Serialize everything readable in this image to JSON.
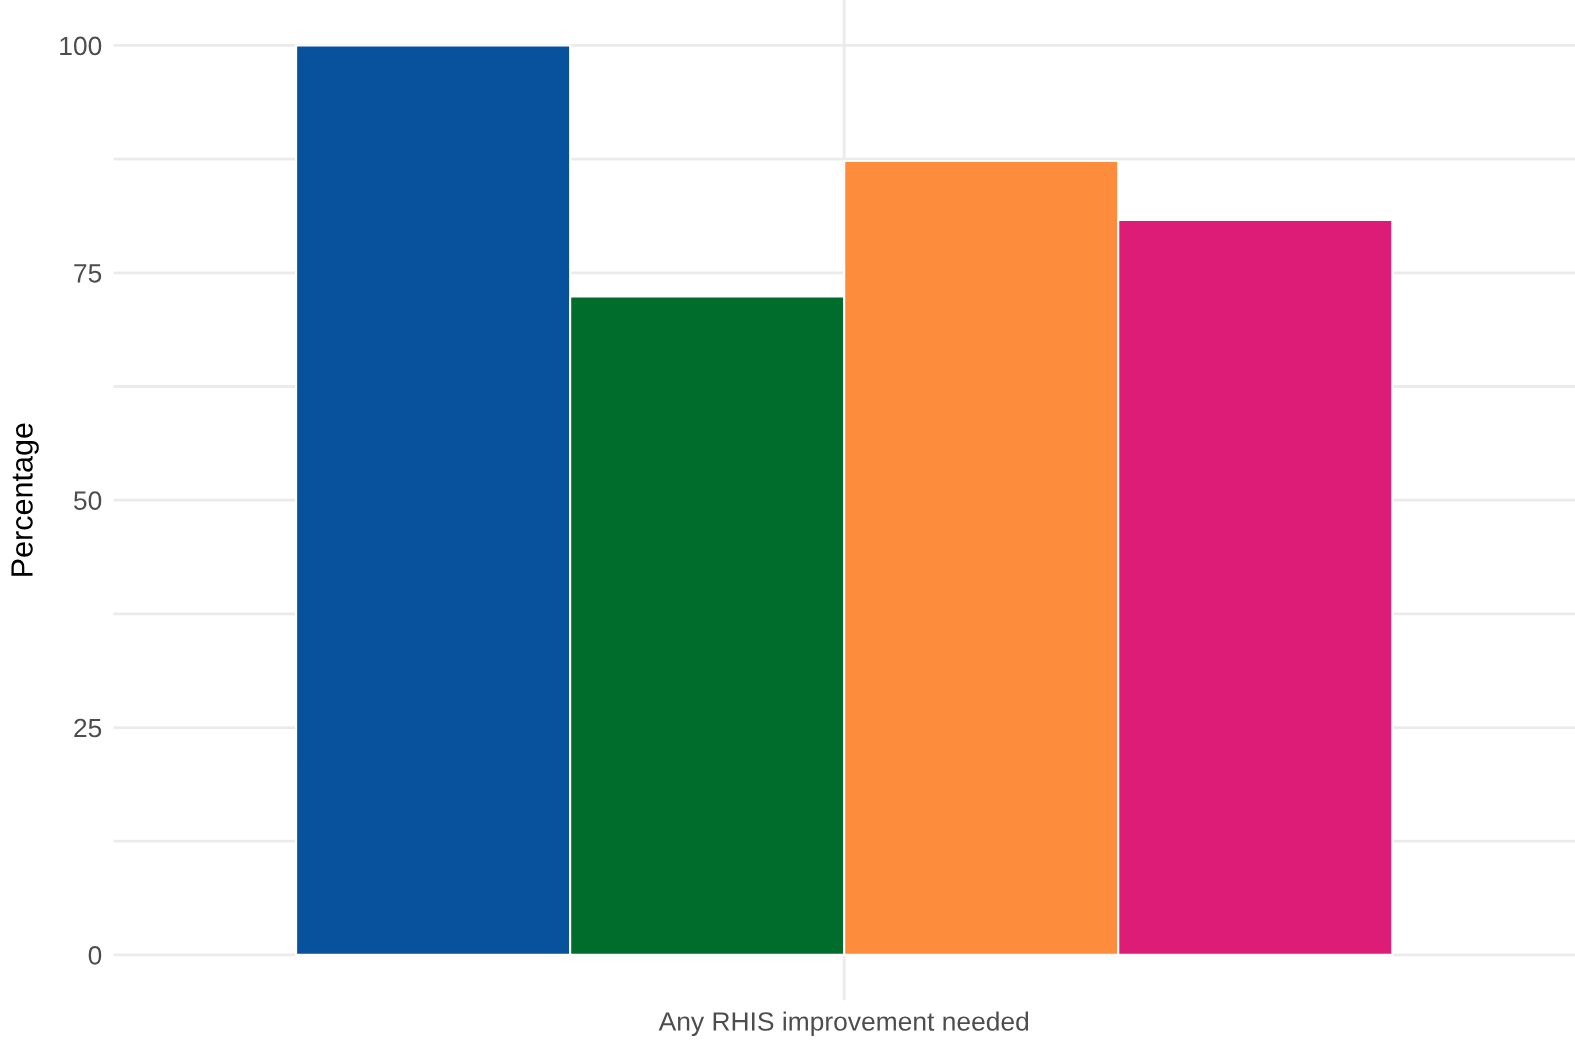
{
  "chart_data": {
    "type": "bar",
    "ylabel": "Percentage",
    "categories": [
      "Any RHIS improvement needed"
    ],
    "series": [
      {
        "color": "#08519c",
        "values": [
          100
        ]
      },
      {
        "color": "#006d2c",
        "values": [
          72.4
        ]
      },
      {
        "color": "#fd8d3c",
        "values": [
          87.3
        ]
      },
      {
        "color": "#dd1c77",
        "values": [
          80.8
        ]
      }
    ],
    "ylim": [
      -5,
      105
    ],
    "yticks": [
      0,
      {
        "value": 12.5,
        "label": null
      },
      25,
      {
        "value": 37.5,
        "label": null
      },
      50,
      {
        "value": 62.5,
        "label": null
      },
      75,
      {
        "value": 87.5,
        "label": null
      },
      100
    ],
    "grid": true
  }
}
